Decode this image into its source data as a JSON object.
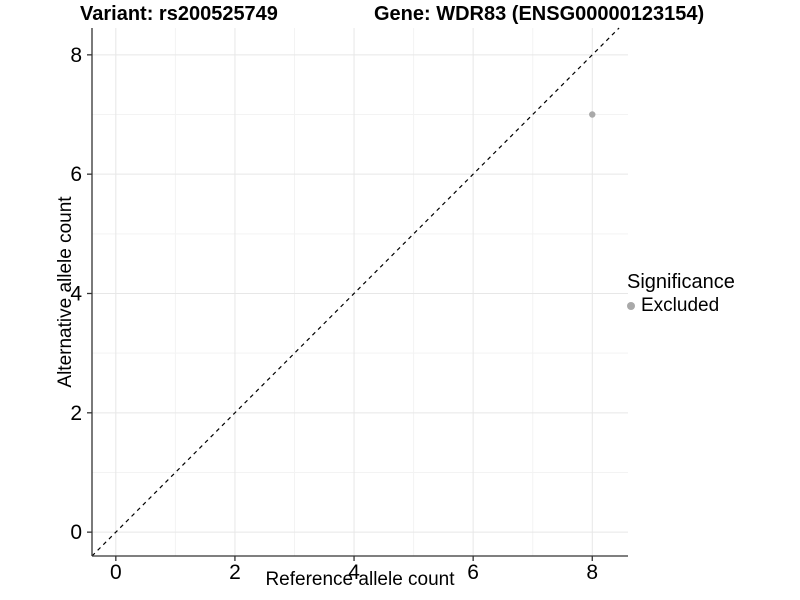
{
  "chart_data": {
    "type": "scatter",
    "title_left": "Variant: rs200525749",
    "title_right": "Gene: WDR83 (ENSG00000123154)",
    "xlabel": "Reference allele count",
    "ylabel": "Alternative allele count",
    "xlim": [
      -0.4,
      8.6
    ],
    "ylim": [
      -0.4,
      8.45
    ],
    "xticks": [
      0,
      2,
      4,
      6,
      8
    ],
    "yticks": [
      0,
      2,
      4,
      6,
      8
    ],
    "minor_xticks": [
      1,
      3,
      5,
      7
    ],
    "minor_yticks": [
      1,
      3,
      5,
      7
    ],
    "grid": true,
    "series": [
      {
        "name": "Excluded",
        "color": "#a9a9a9",
        "points": [
          {
            "x": 8,
            "y": 7
          }
        ]
      }
    ],
    "reference_line": {
      "style": "dashed",
      "slope": 1,
      "intercept": 0,
      "color": "#000000"
    },
    "legend": {
      "title": "Significance",
      "position": "right",
      "items": [
        {
          "label": "Excluded",
          "color": "#a9a9a9",
          "marker": "circle-icon"
        }
      ]
    },
    "colors": {
      "background": "#ffffff",
      "grid_major": "#e7e7e7",
      "grid_minor": "#f3f3f3",
      "axis_line": "#333333",
      "tick_text": "#000000"
    }
  }
}
